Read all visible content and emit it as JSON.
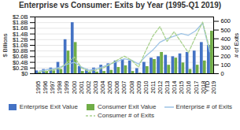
{
  "chart_data": {
    "type": "bar",
    "title": "Enterprise vs Consumer: Exits by Year (1995-Q1 2019)",
    "categories": [
      "1995",
      "1996",
      "1997",
      "1998",
      "1999",
      "2000",
      "2001",
      "2002",
      "2003",
      "2004",
      "2005",
      "2006",
      "2007",
      "2008",
      "2009",
      "2010",
      "2011",
      "2012",
      "2013",
      "2014",
      "2015",
      "2016",
      "2017",
      "2018",
      "YTD\n2019"
    ],
    "series": [
      {
        "name": "Enterprise Exit Value",
        "type": "bar",
        "color": "#4472C4",
        "values": [
          0.1,
          0.15,
          0.2,
          0.4,
          1.2,
          1.8,
          0.25,
          0.15,
          0.2,
          0.3,
          0.35,
          0.45,
          0.5,
          0.45,
          0.18,
          0.4,
          0.55,
          0.6,
          0.65,
          0.6,
          0.7,
          0.75,
          0.8,
          1.1,
          1.0
        ]
      },
      {
        "name": "Consumer Exit Value",
        "type": "bar",
        "color": "#70AD47",
        "values": [
          0.05,
          0.08,
          0.1,
          0.15,
          0.8,
          1.1,
          0.08,
          0.05,
          0.06,
          0.08,
          0.12,
          0.22,
          0.28,
          0.08,
          0.02,
          0.25,
          0.5,
          0.75,
          0.3,
          0.55,
          0.38,
          0.15,
          0.3,
          0.45,
          1.5
        ]
      },
      {
        "name": "Enterprise # of Exits",
        "type": "line",
        "axis": "y2",
        "color": "#9DC3E6",
        "line_style": "solid",
        "values": [
          30,
          45,
          55,
          75,
          110,
          130,
          75,
          40,
          55,
          80,
          110,
          140,
          170,
          155,
          110,
          200,
          270,
          360,
          400,
          430,
          460,
          440,
          490,
          580,
          250
        ]
      },
      {
        "name": "Consumer # of Exits",
        "type": "line",
        "axis": "y2",
        "color": "#A9D18E",
        "line_style": "dashed",
        "values": [
          20,
          30,
          45,
          60,
          130,
          190,
          65,
          28,
          40,
          65,
          105,
          155,
          200,
          155,
          75,
          260,
          430,
          540,
          370,
          480,
          360,
          240,
          420,
          590,
          280
        ]
      }
    ],
    "ylabel": "$ Billions",
    "y2label": "# of Exits",
    "ylim": [
      0,
      2.0
    ],
    "yticks": [
      {
        "value": 0.0,
        "label": "$0"
      },
      {
        "value": 0.2,
        "label": "$0.2B"
      },
      {
        "value": 0.4,
        "label": "$0.4B"
      },
      {
        "value": 0.6,
        "label": "$0.6B"
      },
      {
        "value": 0.8,
        "label": "$0.8B"
      },
      {
        "value": 1.0,
        "label": "$1.0B"
      },
      {
        "value": 1.2,
        "label": "$1.2B"
      },
      {
        "value": 1.4,
        "label": "$1.4B"
      },
      {
        "value": 1.6,
        "label": "$1.6B"
      },
      {
        "value": 1.8,
        "label": "$1.8B"
      },
      {
        "value": 2.0,
        "label": "$2.0B"
      }
    ],
    "y2lim": [
      0,
      650
    ],
    "y2ticks": [
      0,
      100,
      200,
      300,
      400,
      500,
      600
    ],
    "grid": true,
    "legend": "bottom"
  }
}
